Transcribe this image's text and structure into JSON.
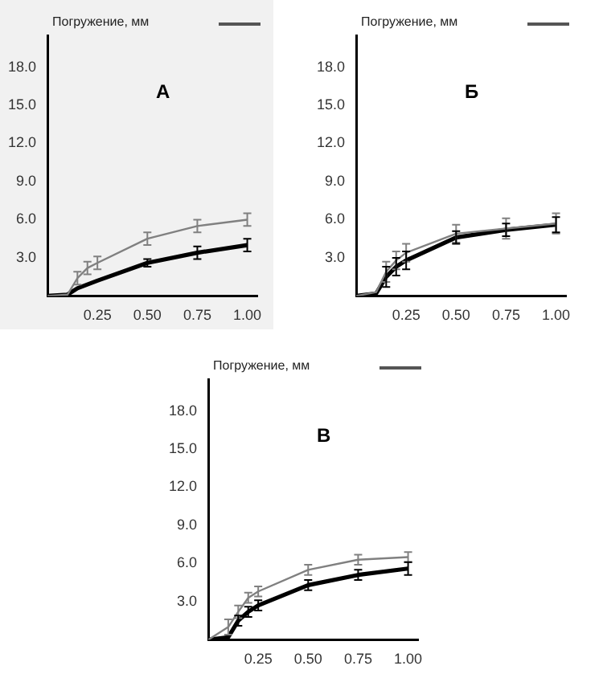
{
  "chart_data": [
    {
      "type": "line",
      "title": "А",
      "ylabel": "Погружение, мм",
      "x": [
        0,
        0.1,
        0.15,
        0.2,
        0.25,
        0.5,
        0.75,
        1.0
      ],
      "xlim": [
        0,
        1.05
      ],
      "ylim": [
        0,
        20.5
      ],
      "xticks": [
        {
          "value": 0.25,
          "label": "0.25"
        },
        {
          "value": 0.5,
          "label": "0.50"
        },
        {
          "value": 0.75,
          "label": "0.75"
        },
        {
          "value": 1,
          "label": "1.00"
        }
      ],
      "yticks": [
        {
          "value": 3,
          "label": "3.0"
        },
        {
          "value": 6,
          "label": "6.0"
        },
        {
          "value": 9,
          "label": "9.0"
        },
        {
          "value": 12,
          "label": "12.0"
        },
        {
          "value": 15,
          "label": "15.0"
        },
        {
          "value": 18,
          "label": "18.0"
        }
      ],
      "grid": false,
      "legend": false,
      "line_style": "solid",
      "series": [
        {
          "color": "#808080",
          "values": [
            0,
            0.1,
            1.4,
            2.2,
            2.6,
            4.5,
            5.5,
            6.0
          ],
          "errors": [
            null,
            null,
            0.5,
            0.5,
            0.5,
            0.5,
            0.5,
            0.5
          ]
        },
        {
          "color": "#000000",
          "values": [
            0,
            0.1,
            0.6,
            0.9,
            1.2,
            2.6,
            3.4,
            4.0
          ],
          "errors": [
            null,
            null,
            null,
            null,
            null,
            0.3,
            0.5,
            0.5
          ]
        }
      ]
    },
    {
      "type": "line",
      "title": "Б",
      "ylabel": "Погружение, мм",
      "x": [
        0,
        0.1,
        0.15,
        0.2,
        0.25,
        0.5,
        0.75,
        1.0
      ],
      "xlim": [
        0,
        1.05
      ],
      "ylim": [
        0,
        20.5
      ],
      "xticks": [
        {
          "value": 0.25,
          "label": "0.25"
        },
        {
          "value": 0.5,
          "label": "0.50"
        },
        {
          "value": 0.75,
          "label": "0.75"
        },
        {
          "value": 1,
          "label": "1.00"
        }
      ],
      "yticks": [
        {
          "value": 3,
          "label": "3.0"
        },
        {
          "value": 6,
          "label": "6.0"
        },
        {
          "value": 9,
          "label": "9.0"
        },
        {
          "value": 12,
          "label": "12.0"
        },
        {
          "value": 15,
          "label": "15.0"
        },
        {
          "value": 18,
          "label": "18.0"
        }
      ],
      "grid": false,
      "legend": false,
      "line_style": "solid",
      "series": [
        {
          "color": "#808080",
          "values": [
            0,
            0.3,
            1.9,
            2.8,
            3.4,
            4.9,
            5.3,
            5.7
          ],
          "errors": [
            null,
            null,
            0.8,
            0.7,
            0.7,
            0.7,
            0.8,
            0.8
          ]
        },
        {
          "color": "#000000",
          "values": [
            0,
            0.2,
            1.5,
            2.3,
            2.8,
            4.6,
            5.2,
            5.6
          ],
          "errors": [
            null,
            null,
            0.8,
            0.7,
            0.7,
            0.5,
            0.5,
            0.6
          ]
        }
      ]
    },
    {
      "type": "line",
      "title": "В",
      "ylabel": "Погружение, мм",
      "x": [
        0,
        0.1,
        0.15,
        0.2,
        0.25,
        0.5,
        0.75,
        1.0
      ],
      "xlim": [
        0,
        1.05
      ],
      "ylim": [
        0,
        20.5
      ],
      "xticks": [
        {
          "value": 0.25,
          "label": "0.25"
        },
        {
          "value": 0.5,
          "label": "0.50"
        },
        {
          "value": 0.75,
          "label": "0.75"
        },
        {
          "value": 1,
          "label": "1.00"
        }
      ],
      "yticks": [
        {
          "value": 3,
          "label": "3.0"
        },
        {
          "value": 6,
          "label": "6.0"
        },
        {
          "value": 9,
          "label": "9.0"
        },
        {
          "value": 12,
          "label": "12.0"
        },
        {
          "value": 15,
          "label": "15.0"
        },
        {
          "value": 18,
          "label": "18.0"
        }
      ],
      "grid": false,
      "legend": false,
      "line_style": "solid",
      "series": [
        {
          "color": "#808080",
          "values": [
            0,
            1.0,
            2.2,
            3.3,
            3.8,
            5.5,
            6.3,
            6.5
          ],
          "errors": [
            null,
            0.6,
            0.5,
            0.4,
            0.4,
            0.4,
            0.4,
            0.4
          ]
        },
        {
          "color": "#000000",
          "values": [
            0,
            0.2,
            1.5,
            2.2,
            2.7,
            4.3,
            5.1,
            5.6
          ],
          "errors": [
            null,
            null,
            0.4,
            0.4,
            0.4,
            0.4,
            0.4,
            0.5
          ]
        }
      ]
    }
  ]
}
